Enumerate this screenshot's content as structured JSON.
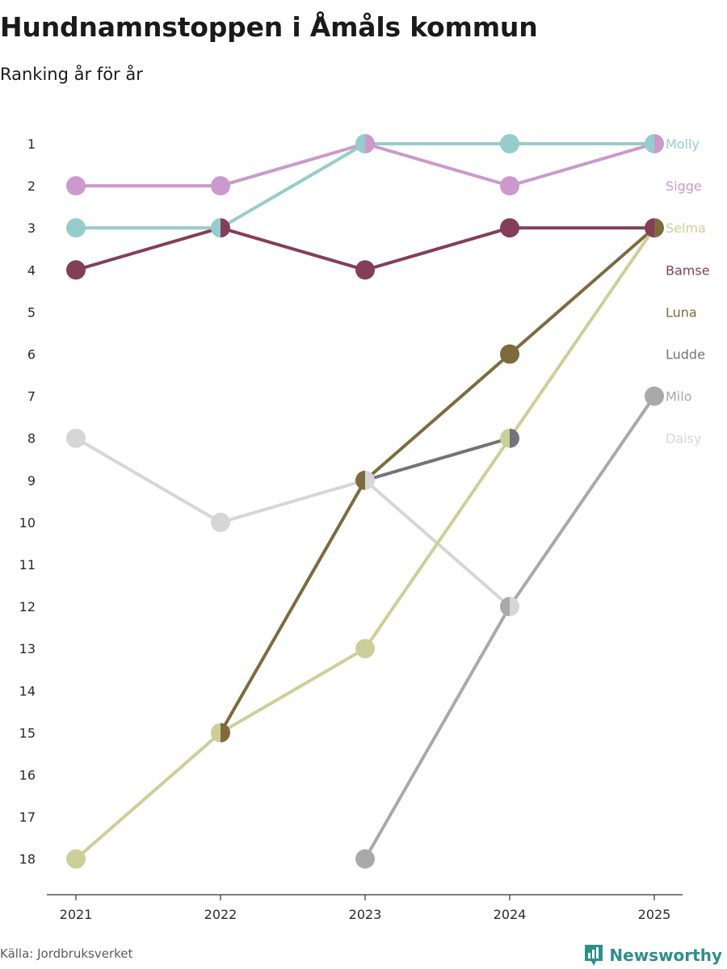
{
  "header": {
    "title": "Hundnamnstoppen i Åmåls kommun",
    "subtitle": "Ranking år för år"
  },
  "footer": {
    "source": "Källa: Jordbruksverket",
    "brand": "Newsworthy",
    "brand_color": "#2f8f8a"
  },
  "chart_data": {
    "type": "line",
    "title": "Hundnamnstoppen i Åmåls kommun",
    "subtitle": "Ranking år för år",
    "xlabel": "",
    "ylabel": "",
    "x": [
      "2021",
      "2022",
      "2023",
      "2024",
      "2025"
    ],
    "ylim": [
      1,
      18
    ],
    "y_inverted": true,
    "y_ticks": [
      "1",
      "2",
      "3",
      "4",
      "5",
      "6",
      "7",
      "8",
      "9",
      "10",
      "11",
      "12",
      "13",
      "14",
      "15",
      "16",
      "17",
      "18"
    ],
    "legend_placement": "right, at line ends",
    "series": [
      {
        "name": "Daisy",
        "color": "#d6d6d6",
        "values": [
          8,
          10,
          9,
          12,
          null
        ]
      },
      {
        "name": "Milo",
        "color": "#a9a9ab",
        "values": [
          null,
          null,
          18,
          12,
          7
        ]
      },
      {
        "name": "Ludde",
        "color": "#73737b",
        "values": [
          null,
          null,
          9,
          8,
          null
        ]
      },
      {
        "name": "Luna",
        "color": "#7d6b3e",
        "values": [
          null,
          15,
          9,
          6,
          3
        ]
      },
      {
        "name": "Selma",
        "color": "#cccf98",
        "values": [
          18,
          15,
          13,
          8,
          3
        ]
      },
      {
        "name": "Bamse",
        "color": "#833f56",
        "values": [
          4,
          3,
          4,
          3,
          3
        ]
      },
      {
        "name": "Sigge",
        "color": "#cc99cc",
        "values": [
          2,
          2,
          1,
          2,
          1
        ]
      },
      {
        "name": "Molly",
        "color": "#96cccc",
        "values": [
          3,
          3,
          1,
          1,
          1
        ]
      }
    ],
    "end_labels": [
      "Molly",
      "Sigge",
      "Selma",
      "Bamse",
      "Luna",
      "Ludde",
      "Milo",
      "Daisy"
    ]
  }
}
